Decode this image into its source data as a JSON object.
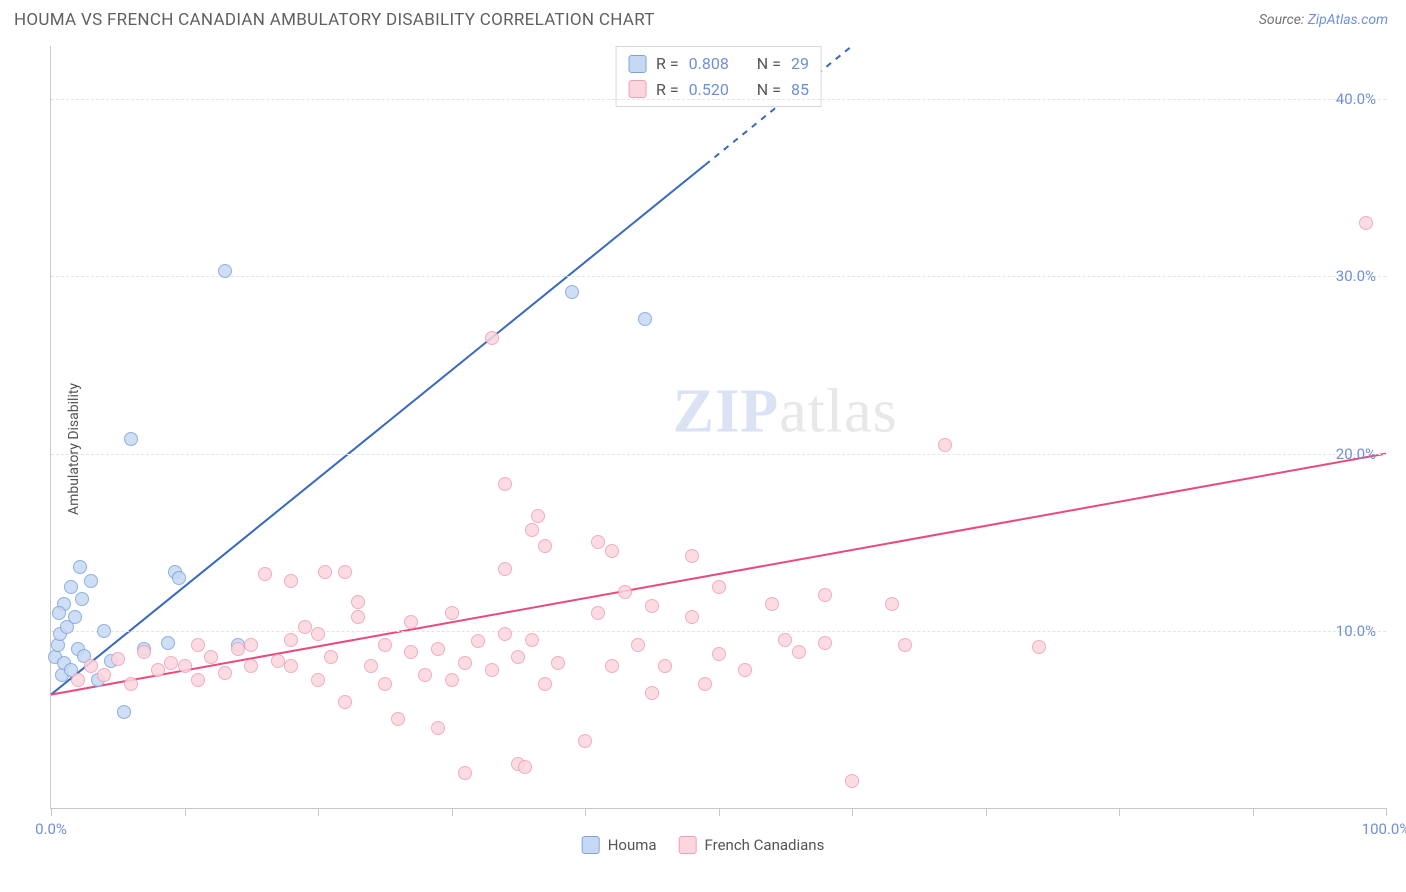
{
  "title": "HOUMA VS FRENCH CANADIAN AMBULATORY DISABILITY CORRELATION CHART",
  "source_prefix": "Source: ",
  "source_link": "ZipAtlas.com",
  "y_axis_title": "Ambulatory Disability",
  "watermark_a": "ZIP",
  "watermark_b": "atlas",
  "chart": {
    "type": "scatter",
    "xlim": [
      0,
      100
    ],
    "ylim": [
      0,
      43
    ],
    "x_ticks": [
      0,
      10,
      20,
      30,
      40,
      50,
      60,
      70,
      80,
      90,
      100
    ],
    "x_tick_labels": {
      "0": "0.0%",
      "100": "100.0%"
    },
    "y_gridlines": [
      10,
      20,
      30,
      40
    ],
    "y_tick_labels": {
      "10": "10.0%",
      "20": "20.0%",
      "30": "30.0%",
      "40": "40.0%"
    },
    "background_color": "#ffffff",
    "grid_color": "#e3e3e3",
    "axis_color": "#c8c8c8",
    "label_color": "#6f8fd8",
    "label_fontsize": 15,
    "title_fontsize": 17,
    "point_radius": 7,
    "point_stroke_width": 1.5,
    "series": [
      {
        "name": "Houma",
        "fill": "#c6d9f4",
        "stroke": "#7ea3dd",
        "R": "0.808",
        "N": "29",
        "trend": {
          "x1": 0,
          "y1": 6.4,
          "x2": 60,
          "y2": 43,
          "color": "#3968c0",
          "width": 2,
          "dash_after_x": 49
        },
        "points": [
          [
            0.3,
            8.5
          ],
          [
            0.5,
            9.2
          ],
          [
            0.8,
            7.5
          ],
          [
            0.7,
            9.8
          ],
          [
            1.0,
            8.2
          ],
          [
            1.2,
            10.2
          ],
          [
            1.5,
            7.8
          ],
          [
            1.8,
            10.8
          ],
          [
            2.0,
            9.0
          ],
          [
            2.3,
            11.8
          ],
          [
            2.5,
            8.6
          ],
          [
            3.0,
            12.8
          ],
          [
            2.2,
            13.6
          ],
          [
            3.5,
            7.2
          ],
          [
            4.0,
            10.0
          ],
          [
            1.0,
            11.5
          ],
          [
            1.5,
            12.5
          ],
          [
            0.6,
            11.0
          ],
          [
            6.0,
            20.8
          ],
          [
            7.0,
            9.0
          ],
          [
            8.8,
            9.3
          ],
          [
            9.3,
            13.3
          ],
          [
            9.6,
            13.0
          ],
          [
            14.0,
            9.2
          ],
          [
            13.0,
            30.3
          ],
          [
            39.0,
            29.1
          ],
          [
            44.5,
            27.6
          ],
          [
            5.5,
            5.4
          ],
          [
            4.5,
            8.3
          ]
        ]
      },
      {
        "name": "French Canadians",
        "fill": "#fcd6df",
        "stroke": "#f09fb5",
        "R": "0.520",
        "N": "85",
        "trend": {
          "x1": 0,
          "y1": 6.4,
          "x2": 100,
          "y2": 20.0,
          "color": "#e84b7b",
          "width": 2
        },
        "points": [
          [
            2,
            7.2
          ],
          [
            3,
            8.0
          ],
          [
            4,
            7.5
          ],
          [
            5,
            8.4
          ],
          [
            6,
            7.0
          ],
          [
            7,
            8.8
          ],
          [
            8,
            7.8
          ],
          [
            9,
            8.2
          ],
          [
            10,
            8.0
          ],
          [
            11,
            7.2
          ],
          [
            11,
            9.2
          ],
          [
            12,
            8.5
          ],
          [
            13,
            7.6
          ],
          [
            14,
            9.0
          ],
          [
            15,
            8.0
          ],
          [
            15,
            9.2
          ],
          [
            16,
            13.2
          ],
          [
            17,
            8.3
          ],
          [
            18,
            9.5
          ],
          [
            18,
            8.0
          ],
          [
            18,
            12.8
          ],
          [
            19,
            10.2
          ],
          [
            20,
            7.2
          ],
          [
            20,
            9.8
          ],
          [
            20.5,
            13.3
          ],
          [
            21,
            8.5
          ],
          [
            22,
            13.3
          ],
          [
            22,
            6.0
          ],
          [
            23,
            10.8
          ],
          [
            23,
            11.6
          ],
          [
            24,
            8.0
          ],
          [
            25,
            9.2
          ],
          [
            25,
            7.0
          ],
          [
            26,
            5.0
          ],
          [
            27,
            8.8
          ],
          [
            27,
            10.5
          ],
          [
            28,
            7.5
          ],
          [
            29,
            4.5
          ],
          [
            29,
            9.0
          ],
          [
            30,
            7.2
          ],
          [
            30,
            11.0
          ],
          [
            31,
            8.2
          ],
          [
            31,
            2.0
          ],
          [
            32,
            9.4
          ],
          [
            33,
            7.8
          ],
          [
            34,
            18.3
          ],
          [
            34,
            9.8
          ],
          [
            34,
            13.5
          ],
          [
            35,
            8.5
          ],
          [
            35,
            2.5
          ],
          [
            35.5,
            2.3
          ],
          [
            36,
            9.5
          ],
          [
            36,
            15.7
          ],
          [
            36.5,
            16.5
          ],
          [
            37,
            7.0
          ],
          [
            37,
            14.8
          ],
          [
            38,
            8.2
          ],
          [
            40,
            3.8
          ],
          [
            41,
            11.0
          ],
          [
            41,
            15.0
          ],
          [
            42,
            8.0
          ],
          [
            42,
            14.5
          ],
          [
            43,
            12.2
          ],
          [
            44,
            9.2
          ],
          [
            45,
            6.5
          ],
          [
            45,
            11.4
          ],
          [
            46,
            8.0
          ],
          [
            48,
            14.2
          ],
          [
            48,
            10.8
          ],
          [
            49,
            7.0
          ],
          [
            50,
            12.5
          ],
          [
            50,
            8.7
          ],
          [
            52,
            7.8
          ],
          [
            54,
            11.5
          ],
          [
            55,
            9.5
          ],
          [
            56,
            8.8
          ],
          [
            58,
            12.0
          ],
          [
            58,
            9.3
          ],
          [
            60,
            1.5
          ],
          [
            63,
            11.5
          ],
          [
            64,
            9.2
          ],
          [
            67,
            20.5
          ],
          [
            74,
            9.1
          ],
          [
            98.5,
            33.0
          ],
          [
            33,
            26.5
          ]
        ]
      }
    ]
  },
  "legend_stats_label_R": "R =",
  "legend_stats_label_N": "N =",
  "bottom_legend": [
    {
      "label": "Houma",
      "fill": "#c6d9f4",
      "stroke": "#7ea3dd"
    },
    {
      "label": "French Canadians",
      "fill": "#fcd6df",
      "stroke": "#f09fb5"
    }
  ]
}
